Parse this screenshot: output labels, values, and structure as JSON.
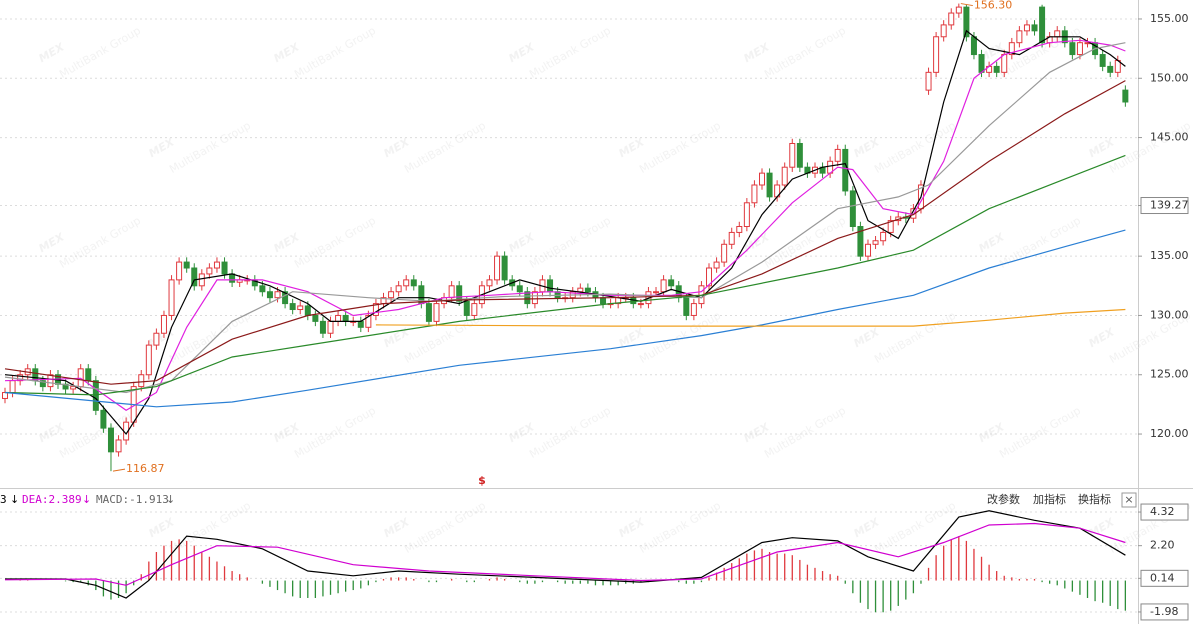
{
  "watermark": {
    "logo": "MEX",
    "sub": "MultiBank Group"
  },
  "chart_data": [
    {
      "type": "candlestick",
      "up_color": "#e0393e",
      "down_color": "#2f8f3a",
      "grid": true,
      "ylim": [
        115.45,
        156.6
      ],
      "yticks": [
        {
          "value": 155,
          "label": "155.00"
        },
        {
          "value": 150,
          "label": "150.00"
        },
        {
          "value": 145,
          "label": "145.00"
        },
        139.27,
        {
          "value": 135,
          "label": "135.00"
        },
        {
          "value": 130,
          "label": "130.00"
        },
        {
          "value": 125,
          "label": "125.00"
        },
        {
          "value": 120,
          "label": "120.00"
        }
      ],
      "open": [
        123,
        123.5,
        124.5,
        125,
        125.5,
        124.5,
        124,
        125,
        124.2,
        123.8,
        124,
        125.5,
        124.5,
        122,
        120.5,
        118.5,
        119.5,
        121,
        124,
        125,
        127.5,
        128.5,
        130,
        133,
        134.5,
        134,
        132.5,
        133.5,
        134,
        134.5,
        133.5,
        132.8,
        133,
        133,
        132.5,
        132,
        131.5,
        132,
        131,
        130.5,
        130.8,
        130,
        129.5,
        128.5,
        129.5,
        130,
        129.5,
        129.5,
        129,
        130,
        131,
        131.5,
        132,
        132.5,
        133,
        132.5,
        131,
        129.5,
        131,
        131.5,
        132.5,
        131.2,
        130,
        131,
        132.5,
        133,
        135,
        133,
        132.5,
        132,
        131,
        132,
        133,
        132,
        131.5,
        131.5,
        132,
        132.3,
        132,
        131.5,
        131,
        131,
        131.5,
        131.5,
        131,
        131,
        132,
        132,
        133,
        132.5,
        131.5,
        130,
        131,
        132.5,
        134,
        134.5,
        136,
        137,
        137.5,
        139.5,
        141,
        142,
        140,
        141,
        142.5,
        144.5,
        142.5,
        142,
        142.5,
        142,
        143,
        144,
        140.5,
        137.5,
        135,
        136,
        136.3,
        137,
        138,
        138.3,
        138.2,
        139,
        149,
        150.5,
        153.5,
        154.5,
        155.5,
        156,
        153.5,
        152,
        150.5,
        151,
        150.5,
        152,
        153,
        154,
        154.5,
        156,
        153,
        153.5,
        154,
        153,
        152,
        153,
        153,
        152,
        151,
        150.5,
        149
      ],
      "high": [
        123.9,
        124.9,
        125.4,
        125.9,
        125.9,
        124.9,
        125.4,
        125.4,
        124.6,
        124.4,
        125.9,
        125.9,
        124.9,
        122.4,
        120.9,
        119.9,
        121.4,
        124.4,
        125.4,
        127.9,
        128.9,
        130.4,
        133.4,
        134.9,
        134.9,
        134.4,
        133.9,
        134.4,
        134.9,
        134.9,
        133.9,
        133.4,
        133.4,
        133.4,
        132.9,
        132.4,
        132.4,
        132.4,
        131.4,
        131.2,
        131.2,
        130.4,
        129.9,
        129.9,
        130.4,
        130.4,
        129.9,
        129.9,
        130.4,
        131.4,
        131.9,
        132.4,
        132.9,
        133.4,
        133.4,
        132.9,
        131.4,
        131.4,
        131.9,
        132.9,
        132.9,
        131.6,
        131.4,
        132.9,
        133.4,
        135.4,
        135.4,
        133.4,
        132.9,
        132.4,
        132.4,
        133.4,
        133.4,
        132.4,
        131.9,
        132.4,
        132.7,
        132.7,
        132.4,
        131.9,
        131.4,
        131.9,
        131.9,
        131.9,
        131.4,
        132.4,
        132.4,
        133.4,
        133.4,
        132.9,
        131.9,
        131.4,
        132.9,
        134.4,
        134.9,
        136.4,
        137.4,
        137.9,
        139.9,
        141.4,
        142.4,
        142.4,
        141.4,
        142.9,
        144.9,
        144.9,
        142.9,
        142.9,
        142.9,
        143.4,
        144.4,
        144.4,
        140.9,
        137.9,
        136.4,
        136.7,
        137.4,
        138.4,
        138.7,
        138.7,
        139.4,
        141.4,
        150.9,
        153.9,
        154.9,
        155.9,
        156.3,
        156.2,
        153.9,
        152.4,
        151.4,
        151.4,
        152.4,
        153.4,
        154.4,
        154.9,
        154.9,
        156.2,
        153.9,
        154.4,
        154.4,
        153.4,
        153.4,
        153.4,
        153.4,
        152.4,
        151.4,
        151.9,
        149.4
      ],
      "low": [
        122.6,
        123.1,
        124.1,
        124.6,
        124.1,
        123.6,
        123.6,
        123.8,
        123.4,
        123.4,
        123.6,
        124.1,
        121.6,
        120.1,
        116.87,
        118.1,
        119.1,
        120.6,
        123.6,
        124.6,
        127.1,
        128.1,
        129.6,
        132.6,
        133.6,
        132.1,
        132.1,
        133.1,
        133.6,
        133.1,
        132.4,
        132.4,
        132.6,
        132.1,
        131.6,
        131.1,
        131.1,
        130.6,
        130.1,
        130.1,
        129.6,
        129.1,
        128.1,
        128.1,
        129.1,
        129.1,
        129.1,
        128.6,
        128.6,
        129.6,
        130.6,
        131.1,
        131.6,
        132.1,
        132.1,
        130.6,
        129.1,
        129.1,
        130.6,
        131.1,
        130.8,
        129.6,
        129.6,
        130.6,
        132.1,
        132.6,
        132.6,
        132.1,
        131.6,
        130.6,
        130.6,
        131.6,
        131.6,
        131.1,
        131.1,
        131.1,
        131.6,
        131.6,
        131.1,
        130.6,
        130.6,
        130.6,
        131.1,
        130.6,
        130.6,
        130.6,
        131.6,
        131.6,
        132.1,
        131.1,
        129.6,
        129.6,
        130.6,
        132.1,
        133.6,
        134.1,
        135.6,
        136.6,
        137.1,
        139.1,
        140.6,
        139.6,
        139.6,
        140.6,
        142.1,
        142.1,
        141.6,
        141.6,
        141.6,
        141.6,
        142.6,
        140.1,
        137.1,
        134.6,
        134.6,
        135.6,
        135.9,
        136.6,
        137.6,
        137.8,
        137.8,
        138.6,
        148.6,
        150.1,
        153.1,
        154.1,
        155.1,
        153.1,
        151.6,
        150.1,
        150.1,
        150.1,
        150.1,
        151.6,
        152.6,
        153.6,
        153.6,
        152.6,
        152.6,
        153.1,
        152.6,
        151.6,
        151.6,
        152.6,
        151.6,
        150.6,
        150.1,
        150.1,
        147.6
      ],
      "close": [
        123.5,
        124.5,
        125,
        125.5,
        124.5,
        124,
        125,
        124.2,
        123.8,
        124,
        125.5,
        124.5,
        122,
        120.5,
        118.5,
        119.5,
        121,
        124,
        125,
        127.5,
        128.5,
        130,
        133,
        134.5,
        134,
        132.5,
        133.5,
        134,
        134.5,
        133.5,
        132.8,
        133,
        133,
        132.5,
        132,
        131.5,
        132,
        131,
        130.5,
        130.8,
        130,
        129.5,
        128.5,
        129.5,
        130,
        129.5,
        129.5,
        129,
        130,
        131,
        131.5,
        132,
        132.5,
        133,
        132.5,
        131,
        129.5,
        131,
        131.5,
        132.5,
        131.2,
        130,
        131,
        132.5,
        133,
        135,
        133,
        132.5,
        132,
        131,
        132,
        133,
        132,
        131.5,
        131.5,
        132,
        132.3,
        132,
        131.5,
        131,
        131,
        131.5,
        131.5,
        131,
        131,
        132,
        132,
        133,
        132.5,
        131.5,
        130,
        131,
        132.5,
        134,
        134.5,
        136,
        137,
        137.5,
        139.5,
        141,
        142,
        140,
        141,
        142.5,
        144.5,
        142.5,
        142,
        142.5,
        142,
        143,
        144,
        140.5,
        137.5,
        135,
        136,
        136.3,
        137,
        138,
        138.3,
        138.2,
        139,
        141,
        150.5,
        153.5,
        154.5,
        155.5,
        156,
        153.5,
        152,
        150.5,
        151,
        150.5,
        152,
        153,
        154,
        154.5,
        154,
        153,
        153.5,
        154,
        153,
        152,
        153,
        153,
        152,
        151,
        150.5,
        151.5,
        148
      ],
      "annotations": [
        {
          "label": "156.30",
          "value": 156.3,
          "color": "#e07020"
        },
        {
          "label": "116.87",
          "value": 116.87,
          "color": "#e07020"
        }
      ],
      "marker": {
        "text": "$",
        "color": "#d02020"
      },
      "series": [
        {
          "color": "#000000",
          "x": [
            0,
            8,
            12,
            16,
            19,
            22,
            25,
            30,
            35,
            40,
            43,
            47,
            52,
            56,
            60,
            64,
            68,
            72,
            78,
            84,
            88,
            92,
            96,
            100,
            104,
            108,
            111,
            114,
            118,
            121,
            124,
            127,
            130,
            134,
            138,
            142,
            146,
            148
          ],
          "values": [
            125,
            124.5,
            123,
            120,
            123,
            129,
            133,
            133.5,
            132.5,
            131,
            129.5,
            129.5,
            131.5,
            131.5,
            131,
            132,
            133,
            132.3,
            131.8,
            131.2,
            132.2,
            131.5,
            134,
            138.5,
            141.5,
            142.5,
            142.8,
            138,
            136.5,
            140,
            148,
            154,
            152.5,
            152,
            153.5,
            153.5,
            152,
            151
          ]
        },
        {
          "color": "#e020e0",
          "x": [
            0,
            10,
            16,
            20,
            24,
            28,
            34,
            40,
            46,
            52,
            58,
            64,
            72,
            80,
            88,
            92,
            98,
            104,
            110,
            112,
            116,
            120,
            124,
            128,
            132,
            138,
            142,
            146,
            148
          ],
          "values": [
            124.5,
            124.7,
            122,
            123.5,
            129,
            133,
            133,
            132,
            130,
            130.5,
            131.5,
            131.7,
            132,
            131.7,
            131.7,
            132,
            135.5,
            139.5,
            142.5,
            142.3,
            139,
            138.5,
            143,
            150,
            152,
            153,
            153.2,
            152.8,
            152.3
          ]
        },
        {
          "color": "#999999",
          "x": [
            0,
            16,
            22,
            30,
            38,
            48,
            56,
            66,
            80,
            92,
            100,
            110,
            118,
            122,
            130,
            138,
            144,
            148
          ],
          "values": [
            124.8,
            123.5,
            124.5,
            129.5,
            132,
            131.5,
            131.2,
            131.6,
            131.8,
            131.5,
            134.5,
            139,
            140,
            141,
            146,
            150.5,
            152.5,
            153
          ]
        },
        {
          "color": "#8b1a1a",
          "x": [
            0,
            14,
            20,
            30,
            40,
            50,
            60,
            80,
            92,
            100,
            110,
            120,
            130,
            140,
            148
          ],
          "values": [
            125.5,
            124.2,
            124.5,
            128,
            130,
            131,
            131.3,
            131.5,
            131.7,
            133.5,
            136.5,
            138.5,
            143,
            147,
            149.8
          ]
        },
        {
          "color": "#2a8a2a",
          "x": [
            0,
            12,
            20,
            30,
            40,
            60,
            80,
            92,
            110,
            120,
            130,
            140,
            148
          ],
          "values": [
            123.5,
            123.3,
            124,
            126.5,
            127.5,
            129.5,
            131,
            131.7,
            134,
            135.5,
            139,
            141.5,
            143.5
          ]
        },
        {
          "color": "#2a7fd4",
          "x": [
            0,
            20,
            30,
            40,
            60,
            80,
            92,
            100,
            110,
            120,
            130,
            140,
            148
          ],
          "values": [
            123.5,
            122.3,
            122.7,
            123.7,
            125.8,
            127.2,
            128.3,
            129.2,
            130.5,
            131.7,
            134,
            135.8,
            137.2
          ]
        },
        {
          "color": "#f0a020",
          "x": [
            49,
            80,
            120,
            130,
            140,
            148
          ],
          "values": [
            129.2,
            129.1,
            129.1,
            129.6,
            130.2,
            130.5
          ]
        }
      ]
    },
    {
      "type": "macd",
      "up_color": "#e0393e",
      "down_color": "#2f8f3a",
      "grid": true,
      "ylim": [
        -2.74,
        5.71
      ],
      "yticks": [
        4.32,
        {
          "value": 2.2,
          "label": "2.20"
        },
        0.14,
        -1.98
      ],
      "header": [
        {
          "text": "3",
          "arrow": "↓",
          "color": "#000000"
        },
        {
          "text": "DEA:2.389",
          "arrow": "↓",
          "color": "#d000d0"
        },
        {
          "text": "MACD:-1.913",
          "arrow": "↓",
          "color": "#666666"
        }
      ],
      "buttons": [
        "改参数",
        "加指标",
        "换指标"
      ],
      "close_button": "×",
      "histogram": [
        0,
        0,
        0.05,
        0.05,
        0,
        0,
        0,
        0,
        -0.05,
        -0.1,
        -0.1,
        -0.3,
        -0.6,
        -1.0,
        -1.2,
        -1.1,
        -0.8,
        -0.3,
        0.4,
        1.2,
        1.8,
        2.2,
        2.5,
        2.6,
        2.5,
        2.2,
        1.8,
        1.5,
        1.2,
        0.9,
        0.6,
        0.4,
        0.2,
        0,
        -0.2,
        -0.4,
        -0.6,
        -0.8,
        -1.0,
        -1.1,
        -1.1,
        -1.1,
        -1.0,
        -0.9,
        -0.8,
        -0.7,
        -0.6,
        -0.5,
        -0.3,
        -0.1,
        0.1,
        0.2,
        0.2,
        0.2,
        0.1,
        0,
        -0.1,
        -0.1,
        0,
        0.1,
        0,
        -0.1,
        -0.1,
        0,
        0.1,
        0.2,
        0.1,
        0,
        -0.1,
        -0.2,
        -0.2,
        -0.1,
        0,
        -0.1,
        -0.2,
        -0.2,
        -0.2,
        -0.2,
        -0.3,
        -0.3,
        -0.3,
        -0.3,
        -0.2,
        -0.2,
        -0.1,
        -0.1,
        0,
        0,
        0,
        -0.1,
        -0.2,
        -0.2,
        -0.1,
        0.2,
        0.5,
        0.8,
        1.1,
        1.4,
        1.7,
        1.9,
        2.0,
        1.8,
        1.7,
        1.7,
        1.6,
        1.3,
        1.0,
        0.8,
        0.6,
        0.4,
        0.3,
        -0.2,
        -0.8,
        -1.4,
        -1.8,
        -2.0,
        -2.0,
        -1.9,
        -1.6,
        -1.2,
        -0.8,
        -0.2,
        0.8,
        1.6,
        2.2,
        2.6,
        2.8,
        2.5,
        2.0,
        1.5,
        1.0,
        0.6,
        0.3,
        0.2,
        0.1,
        0.1,
        0.1,
        -0.1,
        -0.2,
        -0.3,
        -0.5,
        -0.7,
        -0.9,
        -1.1,
        -1.3,
        -1.4,
        -1.6,
        -1.8,
        -1.9
      ],
      "series": [
        {
          "color": "#000000",
          "x": [
            0,
            8,
            12,
            16,
            19,
            24,
            28,
            34,
            40,
            46,
            52,
            60,
            70,
            84,
            92,
            100,
            104,
            110,
            114,
            120,
            126,
            130,
            136,
            142,
            148
          ],
          "values": [
            0.1,
            0.1,
            -0.3,
            -1.1,
            0,
            2.8,
            2.6,
            2.0,
            0.6,
            0.3,
            0.6,
            0.4,
            0.2,
            -0.1,
            0.2,
            2.4,
            2.7,
            2.5,
            1.5,
            0.6,
            4.0,
            4.4,
            3.8,
            3.3,
            1.6
          ]
        },
        {
          "color": "#d000d0",
          "x": [
            0,
            12,
            16,
            22,
            28,
            36,
            46,
            56,
            70,
            84,
            92,
            102,
            110,
            118,
            124,
            130,
            136,
            142,
            148
          ],
          "values": [
            0.05,
            0.1,
            -0.3,
            1.0,
            2.2,
            2.1,
            1.0,
            0.6,
            0.3,
            0.0,
            0.1,
            1.8,
            2.4,
            1.5,
            2.4,
            3.5,
            3.6,
            3.3,
            2.4
          ]
        }
      ]
    }
  ]
}
